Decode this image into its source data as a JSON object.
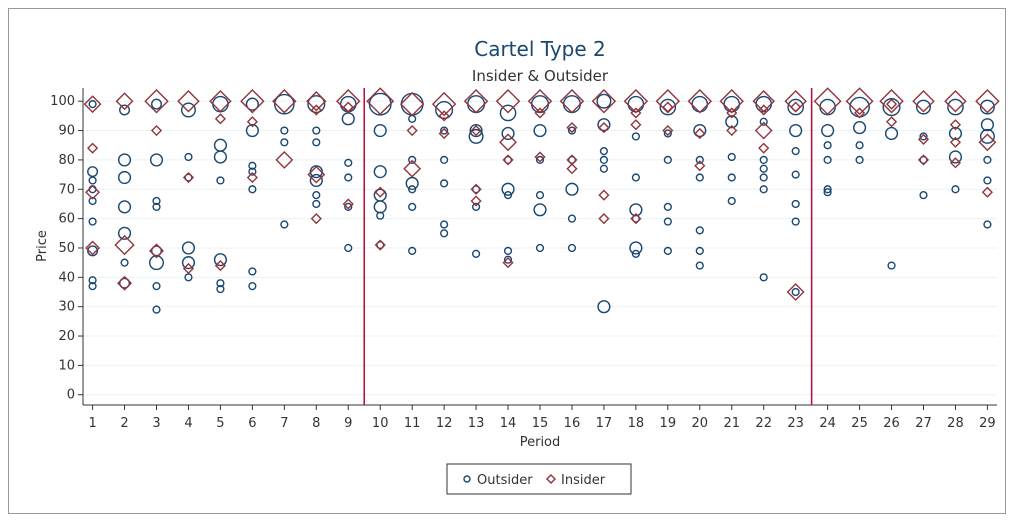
{
  "chart_data": {
    "type": "scatter",
    "title": "Cartel Type 2",
    "subtitle": "Insider & Outsider",
    "x_label": "Period",
    "y_label": "Price",
    "xlim": [
      0.7,
      29.3
    ],
    "ylim": [
      -3.5,
      104.5
    ],
    "xticks": [
      1,
      2,
      3,
      4,
      5,
      6,
      7,
      8,
      9,
      10,
      11,
      12,
      13,
      14,
      15,
      16,
      17,
      18,
      19,
      20,
      21,
      22,
      23,
      24,
      25,
      26,
      27,
      28,
      29
    ],
    "yticks": [
      0,
      10,
      20,
      30,
      40,
      50,
      60,
      70,
      80,
      90,
      100
    ],
    "grid": true,
    "legend": "bottom",
    "xlines": [
      9.5,
      23.5
    ],
    "xline_color": "#c10534",
    "series": [
      {
        "name": "Outsider",
        "marker": "circle",
        "color": "#1a476f",
        "x": [
          1,
          1,
          1,
          1,
          1,
          1,
          1,
          1,
          1,
          2,
          2,
          2,
          2,
          2,
          2,
          2,
          3,
          3,
          3,
          3,
          3,
          3,
          3,
          3,
          4,
          4,
          4,
          4,
          4,
          4,
          5,
          5,
          5,
          5,
          5,
          5,
          5,
          6,
          6,
          6,
          6,
          6,
          6,
          6,
          7,
          7,
          7,
          7,
          8,
          8,
          8,
          8,
          8,
          8,
          8,
          9,
          9,
          9,
          9,
          9,
          9,
          10,
          10,
          10,
          10,
          10,
          10,
          10,
          11,
          11,
          11,
          11,
          11,
          11,
          11,
          12,
          12,
          12,
          12,
          12,
          12,
          13,
          13,
          13,
          13,
          13,
          13,
          14,
          14,
          14,
          14,
          14,
          14,
          14,
          15,
          15,
          15,
          15,
          15,
          15,
          16,
          16,
          16,
          16,
          16,
          16,
          17,
          17,
          17,
          17,
          17,
          17,
          18,
          18,
          18,
          18,
          18,
          18,
          18,
          19,
          19,
          19,
          19,
          19,
          19,
          20,
          20,
          20,
          20,
          20,
          20,
          20,
          21,
          21,
          21,
          21,
          21,
          22,
          22,
          22,
          22,
          22,
          22,
          22,
          23,
          23,
          23,
          23,
          23,
          23,
          23,
          24,
          24,
          24,
          24,
          24,
          24,
          25,
          25,
          25,
          25,
          26,
          26,
          26,
          27,
          27,
          27,
          27,
          28,
          28,
          28,
          28,
          29,
          29,
          29,
          29,
          29,
          29
        ],
        "values": [
          99,
          76,
          73,
          70,
          66,
          59,
          49,
          39,
          37,
          97,
          80,
          74,
          64,
          55,
          45,
          38,
          99,
          80,
          66,
          64,
          49,
          45,
          37,
          29,
          97,
          81,
          74,
          50,
          45,
          40,
          99,
          85,
          81,
          73,
          46,
          38,
          36,
          99,
          90,
          78,
          76,
          70,
          42,
          37,
          99,
          90,
          86,
          58,
          99,
          90,
          86,
          76,
          73,
          68,
          65,
          99,
          94,
          79,
          74,
          64,
          50,
          99,
          90,
          76,
          68,
          64,
          61,
          51,
          99,
          94,
          80,
          72,
          70,
          64,
          49,
          97,
          90,
          80,
          72,
          58,
          55,
          99,
          90,
          88,
          70,
          64,
          48,
          96,
          89,
          80,
          70,
          68,
          49,
          46,
          99,
          90,
          80,
          68,
          63,
          50,
          99,
          90,
          80,
          70,
          60,
          50,
          100,
          92,
          83,
          80,
          77,
          30,
          99,
          88,
          74,
          63,
          60,
          50,
          48,
          98,
          89,
          80,
          64,
          59,
          49,
          99,
          90,
          80,
          74,
          56,
          49,
          44,
          99,
          93,
          81,
          74,
          66,
          99,
          93,
          80,
          77,
          74,
          70,
          40,
          98,
          90,
          83,
          75,
          65,
          59,
          35,
          98,
          90,
          85,
          80,
          70,
          69,
          98,
          91,
          85,
          80,
          98,
          89,
          44,
          98,
          88,
          80,
          68,
          98,
          89,
          81,
          70,
          98,
          92,
          88,
          80,
          73,
          58
        ],
        "sizes": [
          1,
          2,
          1,
          1,
          1,
          1,
          2,
          1,
          1,
          2,
          3,
          3,
          3,
          3,
          1,
          2,
          2,
          3,
          1,
          1,
          2,
          4,
          1,
          1,
          4,
          1,
          1,
          3,
          3,
          1,
          5,
          3,
          3,
          1,
          3,
          1,
          1,
          3,
          3,
          1,
          1,
          1,
          1,
          1,
          8,
          1,
          1,
          1,
          6,
          1,
          1,
          3,
          3,
          1,
          1,
          5,
          3,
          1,
          1,
          1,
          1,
          10,
          3,
          3,
          3,
          3,
          1,
          1,
          10,
          1,
          1,
          3,
          1,
          1,
          1,
          6,
          1,
          1,
          1,
          1,
          1,
          6,
          3,
          4,
          1,
          1,
          1,
          5,
          3,
          1,
          3,
          1,
          1,
          1,
          6,
          3,
          1,
          1,
          3,
          1,
          6,
          1,
          1,
          3,
          1,
          1,
          4,
          3,
          1,
          1,
          1,
          3,
          5,
          1,
          1,
          3,
          1,
          3,
          1,
          5,
          1,
          1,
          1,
          1,
          1,
          5,
          3,
          1,
          1,
          1,
          1,
          1,
          5,
          3,
          1,
          1,
          1,
          5,
          1,
          1,
          1,
          1,
          1,
          1,
          5,
          3,
          1,
          1,
          1,
          1,
          1,
          5,
          3,
          1,
          1,
          1,
          1,
          8,
          3,
          1,
          1,
          6,
          3,
          1,
          4,
          1,
          1,
          1,
          5,
          3,
          3,
          1,
          4,
          3,
          4,
          1,
          1,
          1
        ]
      },
      {
        "name": "Insider",
        "marker": "diamond",
        "color": "#90353b",
        "x": [
          1,
          1,
          1,
          1,
          2,
          2,
          2,
          3,
          3,
          3,
          4,
          4,
          4,
          5,
          5,
          5,
          6,
          6,
          6,
          7,
          7,
          8,
          8,
          8,
          8,
          9,
          9,
          9,
          10,
          10,
          10,
          11,
          11,
          11,
          12,
          12,
          12,
          13,
          13,
          13,
          13,
          14,
          14,
          14,
          14,
          15,
          15,
          15,
          16,
          16,
          16,
          16,
          17,
          17,
          17,
          17,
          18,
          18,
          18,
          18,
          19,
          19,
          19,
          20,
          20,
          20,
          21,
          21,
          21,
          22,
          22,
          22,
          22,
          23,
          23,
          23,
          24,
          25,
          25,
          26,
          26,
          26,
          27,
          27,
          27,
          28,
          28,
          28,
          28,
          29,
          29,
          29
        ],
        "values": [
          99,
          84,
          69,
          50,
          100,
          51,
          38,
          100,
          90,
          49,
          100,
          74,
          43,
          100,
          94,
          44,
          100,
          93,
          74,
          100,
          80,
          100,
          97,
          75,
          60,
          100,
          98,
          65,
          100,
          69,
          51,
          99,
          90,
          77,
          99,
          95,
          89,
          100,
          90,
          70,
          66,
          100,
          86,
          80,
          45,
          100,
          96,
          81,
          100,
          91,
          80,
          77,
          100,
          91,
          68,
          60,
          100,
          96,
          92,
          60,
          100,
          98,
          90,
          100,
          89,
          78,
          100,
          96,
          90,
          100,
          97,
          90,
          84,
          100,
          98,
          35,
          100,
          100,
          96,
          100,
          99,
          93,
          100,
          87,
          80,
          100,
          92,
          86,
          79,
          100,
          86,
          69
        ],
        "sizes": [
          3,
          1,
          2,
          2,
          3,
          4,
          2,
          6,
          1,
          2,
          5,
          1,
          1,
          5,
          1,
          1,
          6,
          1,
          1,
          6,
          3,
          4,
          1,
          3,
          1,
          6,
          1,
          1,
          8,
          1,
          1,
          6,
          1,
          3,
          6,
          1,
          1,
          6,
          1,
          1,
          1,
          6,
          3,
          1,
          1,
          6,
          1,
          1,
          6,
          1,
          1,
          1,
          6,
          1,
          1,
          1,
          6,
          1,
          1,
          1,
          6,
          1,
          1,
          6,
          1,
          1,
          6,
          1,
          1,
          5,
          1,
          3,
          1,
          5,
          1,
          3,
          8,
          8,
          1,
          6,
          1,
          1,
          5,
          1,
          1,
          5,
          1,
          1,
          1,
          6,
          3,
          1
        ]
      }
    ]
  }
}
